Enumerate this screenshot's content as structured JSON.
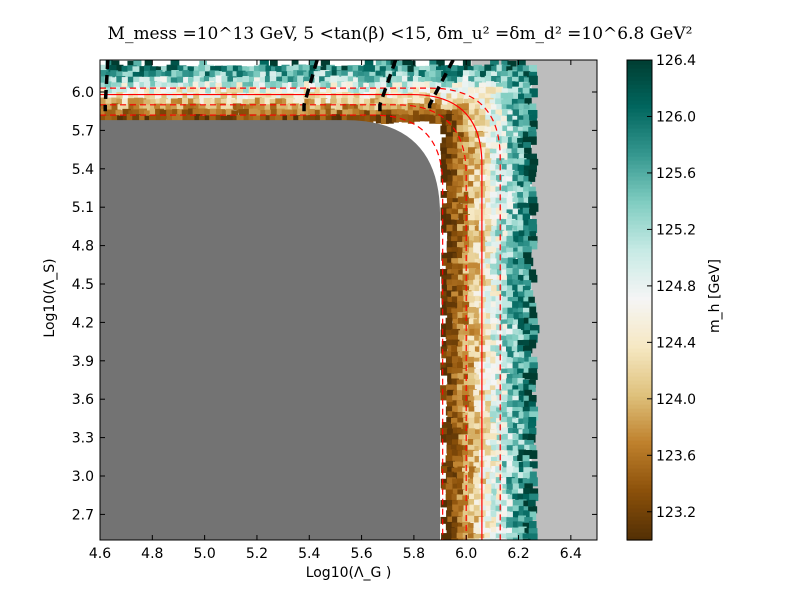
{
  "chart_data": {
    "type": "heatmap",
    "title": "M_mess =10^13  GeV, 5 <tan(β) <15, δm_u² =δm_d² =10^6.8  GeV²",
    "xlabel": "Log10(Λ_G )",
    "ylabel": "Log10(Λ_S)",
    "colorbar_label": "m_h  [GeV]",
    "xlim": [
      4.6,
      6.5
    ],
    "ylim": [
      2.5,
      6.25
    ],
    "x_ticks": [
      "4.6",
      "4.8",
      "5.0",
      "5.2",
      "5.4",
      "5.6",
      "5.8",
      "6.0",
      "6.2",
      "6.4"
    ],
    "y_ticks": [
      "2.7",
      "3.0",
      "3.3",
      "3.6",
      "3.9",
      "4.2",
      "4.5",
      "4.8",
      "5.1",
      "5.4",
      "5.7",
      "6.0"
    ],
    "colorbar_ticks": [
      "123.2",
      "123.6",
      "124.0",
      "124.4",
      "124.8",
      "125.2",
      "125.6",
      "126.0",
      "126.4"
    ],
    "colorbar_range": [
      123.0,
      126.4
    ],
    "regions": {
      "excluded_dark_gray": {
        "x_max": 5.9,
        "y_max": 5.78,
        "color": "#737373"
      },
      "excluded_light_gray": {
        "x_min": 6.25,
        "y_min": 6.07,
        "color": "#bdbdbd"
      }
    },
    "scatter_band": {
      "x_range": [
        5.9,
        6.25
      ],
      "y_range": [
        5.78,
        6.25
      ],
      "mh_trend": "increases outward from inner corner: ~123.0 GeV at the inner edge to ~126.3 GeV at the outer edge"
    },
    "contours": [
      {
        "style": "solid",
        "color": "#ff0000",
        "corner_x": 6.06,
        "corner_y": 5.98
      },
      {
        "style": "dashed",
        "color": "#ff0000",
        "corner_x": 6.0,
        "corner_y": 5.9
      },
      {
        "style": "dashed",
        "color": "#ff0000",
        "corner_x": 5.91,
        "corner_y": 5.82
      },
      {
        "style": "dashed",
        "color": "#ff0000",
        "corner_x": 6.13,
        "corner_y": 6.03
      }
    ],
    "black_dashed_lines": [
      {
        "x_top": 4.63,
        "x_bottom": 4.62
      },
      {
        "x_top": 5.43,
        "x_bottom": 5.38
      },
      {
        "x_top": 5.73,
        "x_bottom": 5.67
      },
      {
        "x_top": 5.95,
        "x_bottom": 5.86
      }
    ],
    "colormap": [
      "#543005",
      "#8c510a",
      "#bf812d",
      "#dfc27d",
      "#f6e8c3",
      "#f5f5f5",
      "#c7eae5",
      "#80cdc1",
      "#35978f",
      "#01665e",
      "#003c30"
    ]
  }
}
